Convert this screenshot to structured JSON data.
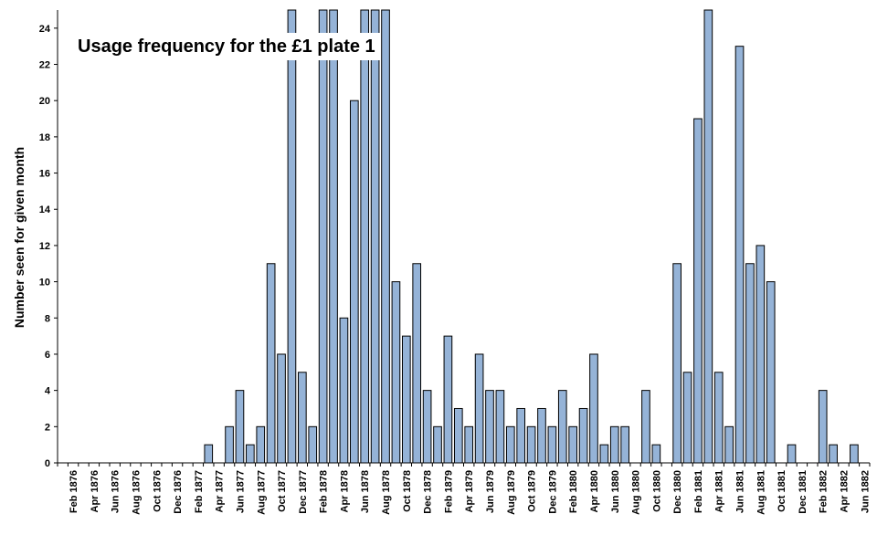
{
  "chart_data": {
    "type": "bar",
    "title": "Usage frequency for the £1 plate 1",
    "xlabel": "",
    "ylabel": "Number seen for given month",
    "ylim": [
      0,
      25
    ],
    "yticks": [
      0,
      2,
      4,
      6,
      8,
      10,
      12,
      14,
      16,
      18,
      20,
      22,
      24
    ],
    "grid": false,
    "legend": "none",
    "bar_color": "#95b3d7",
    "bar_edge_color": "#000000",
    "categories": [
      "Jan 1876",
      "Feb 1876",
      "Mar 1876",
      "Apr 1876",
      "May 1876",
      "Jun 1876",
      "Jul 1876",
      "Aug 1876",
      "Sep 1876",
      "Oct 1876",
      "Nov 1876",
      "Dec 1876",
      "Jan 1877",
      "Feb 1877",
      "Mar 1877",
      "Apr 1877",
      "May 1877",
      "Jun 1877",
      "Jul 1877",
      "Aug 1877",
      "Sep 1877",
      "Oct 1877",
      "Nov 1877",
      "Dec 1877",
      "Jan 1878",
      "Feb 1878",
      "Mar 1878",
      "Apr 1878",
      "May 1878",
      "Jun 1878",
      "Jul 1878",
      "Aug 1878",
      "Sep 1878",
      "Oct 1878",
      "Nov 1878",
      "Dec 1878",
      "Jan 1879",
      "Feb 1879",
      "Mar 1879",
      "Apr 1879",
      "May 1879",
      "Jun 1879",
      "Jul 1879",
      "Aug 1879",
      "Sep 1879",
      "Oct 1879",
      "Nov 1879",
      "Dec 1879",
      "Jan 1880",
      "Feb 1880",
      "Mar 1880",
      "Apr 1880",
      "May 1880",
      "Jun 1880",
      "Jul 1880",
      "Aug 1880",
      "Sep 1880",
      "Oct 1880",
      "Nov 1880",
      "Dec 1880",
      "Jan 1881",
      "Feb 1881",
      "Mar 1881",
      "Apr 1881",
      "May 1881",
      "Jun 1881",
      "Jul 1881",
      "Aug 1881",
      "Sep 1881",
      "Oct 1881",
      "Nov 1881",
      "Dec 1881",
      "Jan 1882",
      "Feb 1882",
      "Mar 1882",
      "Apr 1882",
      "May 1882",
      "Jun 1882"
    ],
    "xtick_labels": [
      "Feb 1876",
      "Apr 1876",
      "Jun 1876",
      "Aug 1876",
      "Oct 1876",
      "Dec 1876",
      "Feb 1877",
      "Apr 1877",
      "Jun 1877",
      "Aug 1877",
      "Oct 1877",
      "Dec 1877",
      "Feb 1878",
      "Apr 1878",
      "Jun 1878",
      "Aug 1878",
      "Oct 1878",
      "Dec 1878",
      "Feb 1879",
      "Apr 1879",
      "Jun 1879",
      "Aug 1879",
      "Oct 1879",
      "Dec 1879",
      "Feb 1880",
      "Apr 1880",
      "Jun 1880",
      "Aug 1880",
      "Oct 1880",
      "Dec 1880",
      "Feb 1881",
      "Apr 1881",
      "Jun 1881",
      "Aug 1881",
      "Oct 1881",
      "Dec 1881",
      "Feb 1882",
      "Apr 1882",
      "Jun 1882"
    ],
    "values": [
      0,
      0,
      0,
      0,
      0,
      0,
      0,
      0,
      0,
      0,
      0,
      0,
      0,
      0,
      1,
      0,
      2,
      4,
      1,
      2,
      11,
      6,
      25,
      5,
      2,
      25,
      25,
      8,
      20,
      25,
      25,
      25,
      10,
      7,
      11,
      4,
      2,
      7,
      3,
      2,
      6,
      4,
      4,
      2,
      3,
      2,
      3,
      2,
      4,
      2,
      3,
      6,
      1,
      2,
      2,
      0,
      4,
      1,
      0,
      11,
      5,
      19,
      25,
      5,
      2,
      23,
      11,
      12,
      10,
      0,
      1,
      0,
      0,
      4,
      1,
      0,
      1,
      0
    ]
  }
}
